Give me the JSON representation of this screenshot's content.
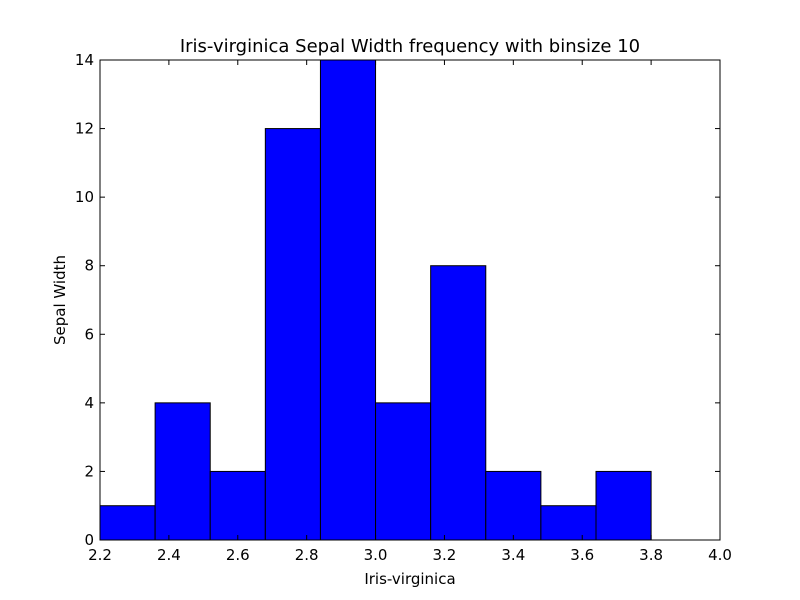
{
  "chart_data": {
    "type": "bar",
    "title": "Iris-virginica Sepal Width frequency with binsize 10",
    "xlabel": "Iris-virginica",
    "ylabel": "Sepal Width",
    "xlim": [
      2.2,
      4.0
    ],
    "ylim": [
      0,
      14
    ],
    "bin_edges": [
      2.2,
      2.36,
      2.52,
      2.68,
      2.84,
      3.0,
      3.16,
      3.32,
      3.48,
      3.64,
      3.8
    ],
    "values": [
      1,
      4,
      2,
      12,
      14,
      4,
      8,
      2,
      1,
      2
    ],
    "x_ticks": [
      "2.2",
      "2.4",
      "2.6",
      "2.8",
      "3.0",
      "3.2",
      "3.4",
      "3.6",
      "3.8",
      "4.0"
    ],
    "y_ticks": [
      "0",
      "2",
      "4",
      "6",
      "8",
      "10",
      "12",
      "14"
    ],
    "bar_color": "#0000ff",
    "bar_edge_color": "#000000",
    "grid": false,
    "legend": false
  }
}
